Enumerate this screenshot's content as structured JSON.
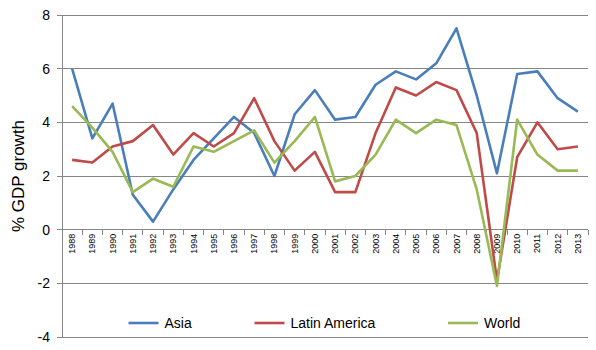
{
  "chart_data": {
    "type": "line",
    "y_label": "% GDP growth",
    "categories": [
      "1988",
      "1989",
      "1990",
      "1991",
      "1992",
      "1993",
      "1994",
      "1995",
      "1996",
      "1997",
      "1998",
      "1999",
      "2000",
      "2001",
      "2002",
      "2003",
      "2004",
      "2005",
      "2006",
      "2007",
      "2008",
      "2009",
      "2010",
      "2011",
      "2012",
      "2013"
    ],
    "series": [
      {
        "name": "Asia",
        "color": "#4a7ebb",
        "values": [
          6.0,
          3.4,
          4.7,
          1.3,
          0.3,
          1.5,
          2.6,
          3.4,
          4.2,
          3.6,
          2.0,
          4.3,
          5.2,
          4.1,
          4.2,
          5.4,
          5.9,
          5.6,
          6.2,
          7.5,
          5.0,
          2.1,
          5.8,
          5.9,
          4.9,
          4.4
        ]
      },
      {
        "name": "Latin America",
        "color": "#be4b48",
        "values": [
          2.6,
          2.5,
          3.1,
          3.3,
          3.9,
          2.8,
          3.6,
          3.1,
          3.6,
          4.9,
          3.3,
          2.2,
          2.9,
          1.4,
          1.4,
          3.6,
          5.3,
          5.0,
          5.5,
          5.2,
          3.6,
          -1.9,
          2.7,
          4.0,
          3.0,
          3.1
        ]
      },
      {
        "name": "World",
        "color": "#98b954",
        "values": [
          4.6,
          3.8,
          2.9,
          1.4,
          1.9,
          1.6,
          3.1,
          2.9,
          3.3,
          3.7,
          2.5,
          3.3,
          4.2,
          1.8,
          2.0,
          2.8,
          4.1,
          3.6,
          4.1,
          3.9,
          1.5,
          -2.1,
          4.1,
          2.8,
          2.2,
          2.2
        ]
      }
    ],
    "ylim": [
      -4,
      8
    ],
    "yticks": [
      -4,
      -2,
      0,
      2,
      4,
      6,
      8
    ],
    "grid": true,
    "legend": "bottom"
  }
}
